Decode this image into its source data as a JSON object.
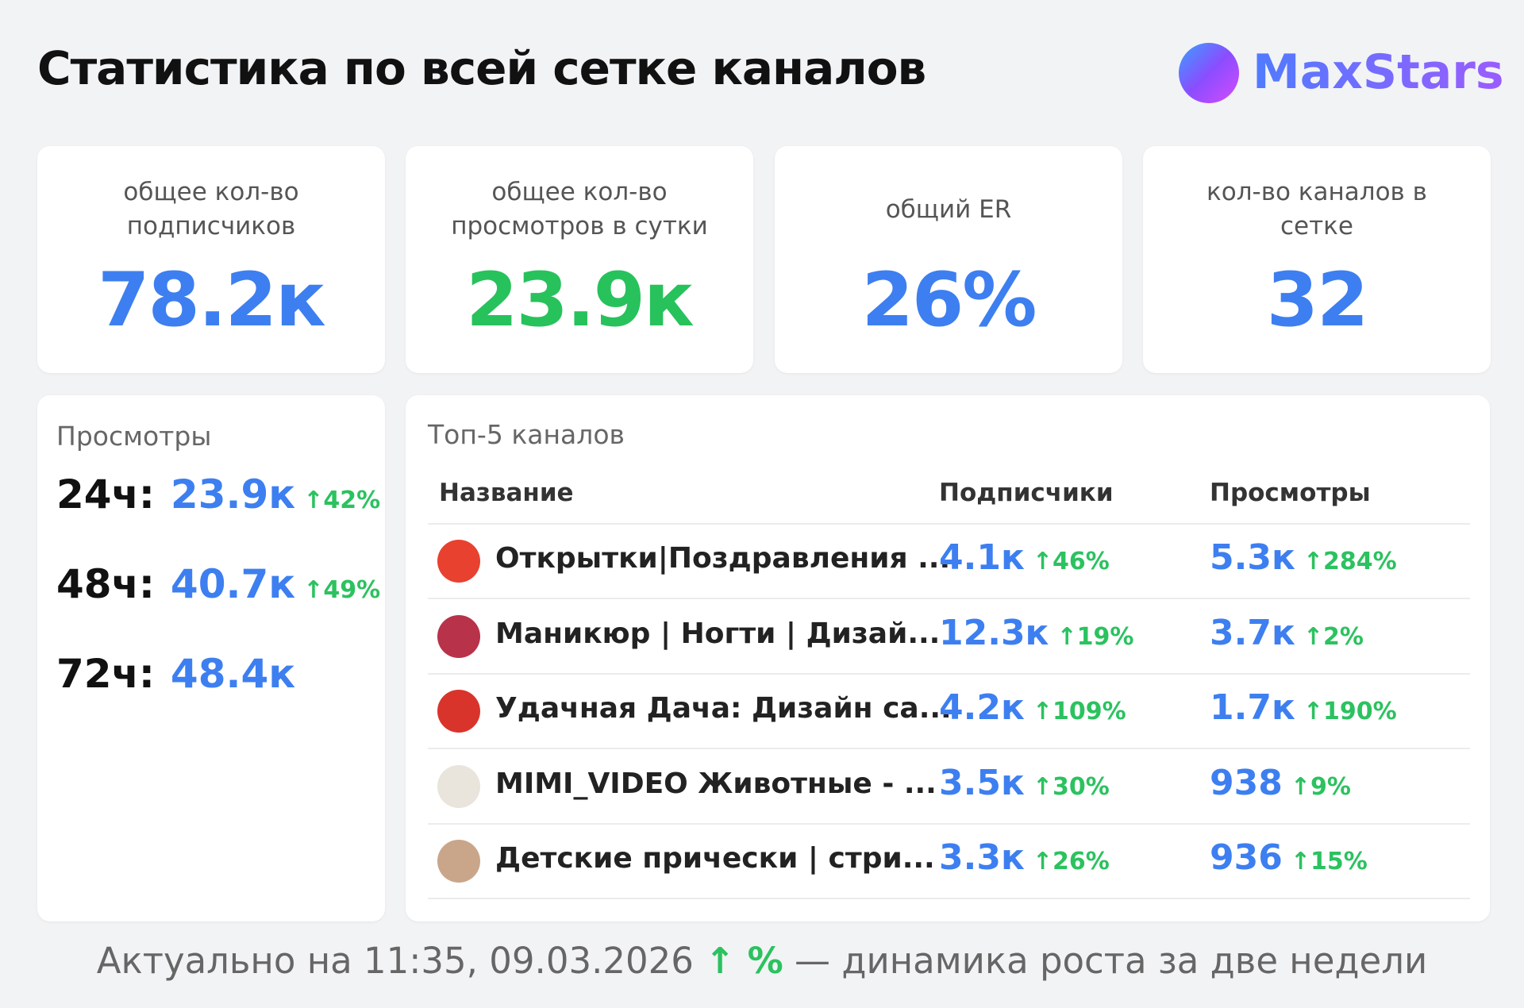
{
  "header": {
    "title": "Статистика по всей сетке каналов",
    "logo": "MaxStars"
  },
  "cards": [
    {
      "label": "общее кол-во подписчиков",
      "value": "78.2к"
    },
    {
      "label": "общее кол-во просмотров в сутки",
      "value": "23.9к"
    },
    {
      "label": "общий ER",
      "value": "26%"
    },
    {
      "label": "кол-во каналов в сетке",
      "value": "32"
    }
  ],
  "views": {
    "title": "Просмотры",
    "rows": [
      {
        "period": "24ч:",
        "value": "23.9к",
        "change": "↑42%"
      },
      {
        "period": "48ч:",
        "value": "40.7к",
        "change": "↑49%"
      },
      {
        "period": "72ч:",
        "value": "48.4к"
      }
    ]
  },
  "top": {
    "title": "Топ-5 каналов",
    "columns": [
      "Название",
      "Подписчики",
      "Просмотры"
    ],
    "rows": [
      {
        "name": "Открытки|Поздравления ...",
        "subscribers": "4.1к",
        "subscribers_change": "↑46%",
        "views": "5.3к",
        "views_change": "↑284%"
      },
      {
        "name": "Маникюр | Ногти | Дизай...",
        "subscribers": "12.3к",
        "subscribers_change": "↑19%",
        "views": "3.7к",
        "views_change": "↑2%"
      },
      {
        "name": "Удачная Дача: Дизайн са...",
        "subscribers": "4.2к",
        "subscribers_change": "↑109%",
        "views": "1.7к",
        "views_change": "↑190%"
      },
      {
        "name": "MIMI_VIDEO Животные - ...",
        "subscribers": "3.5к",
        "subscribers_change": "↑30%",
        "views": "938",
        "views_change": "↑9%"
      },
      {
        "name": "Детские прически | стри...",
        "subscribers": "3.3к",
        "subscribers_change": "↑26%",
        "views": "936",
        "views_change": "↑15%"
      }
    ]
  },
  "footer": {
    "text": "Актуально на 11:35, 09.03.2026",
    "legend": "↑ %",
    "note": "— динамика роста за две недели"
  }
}
